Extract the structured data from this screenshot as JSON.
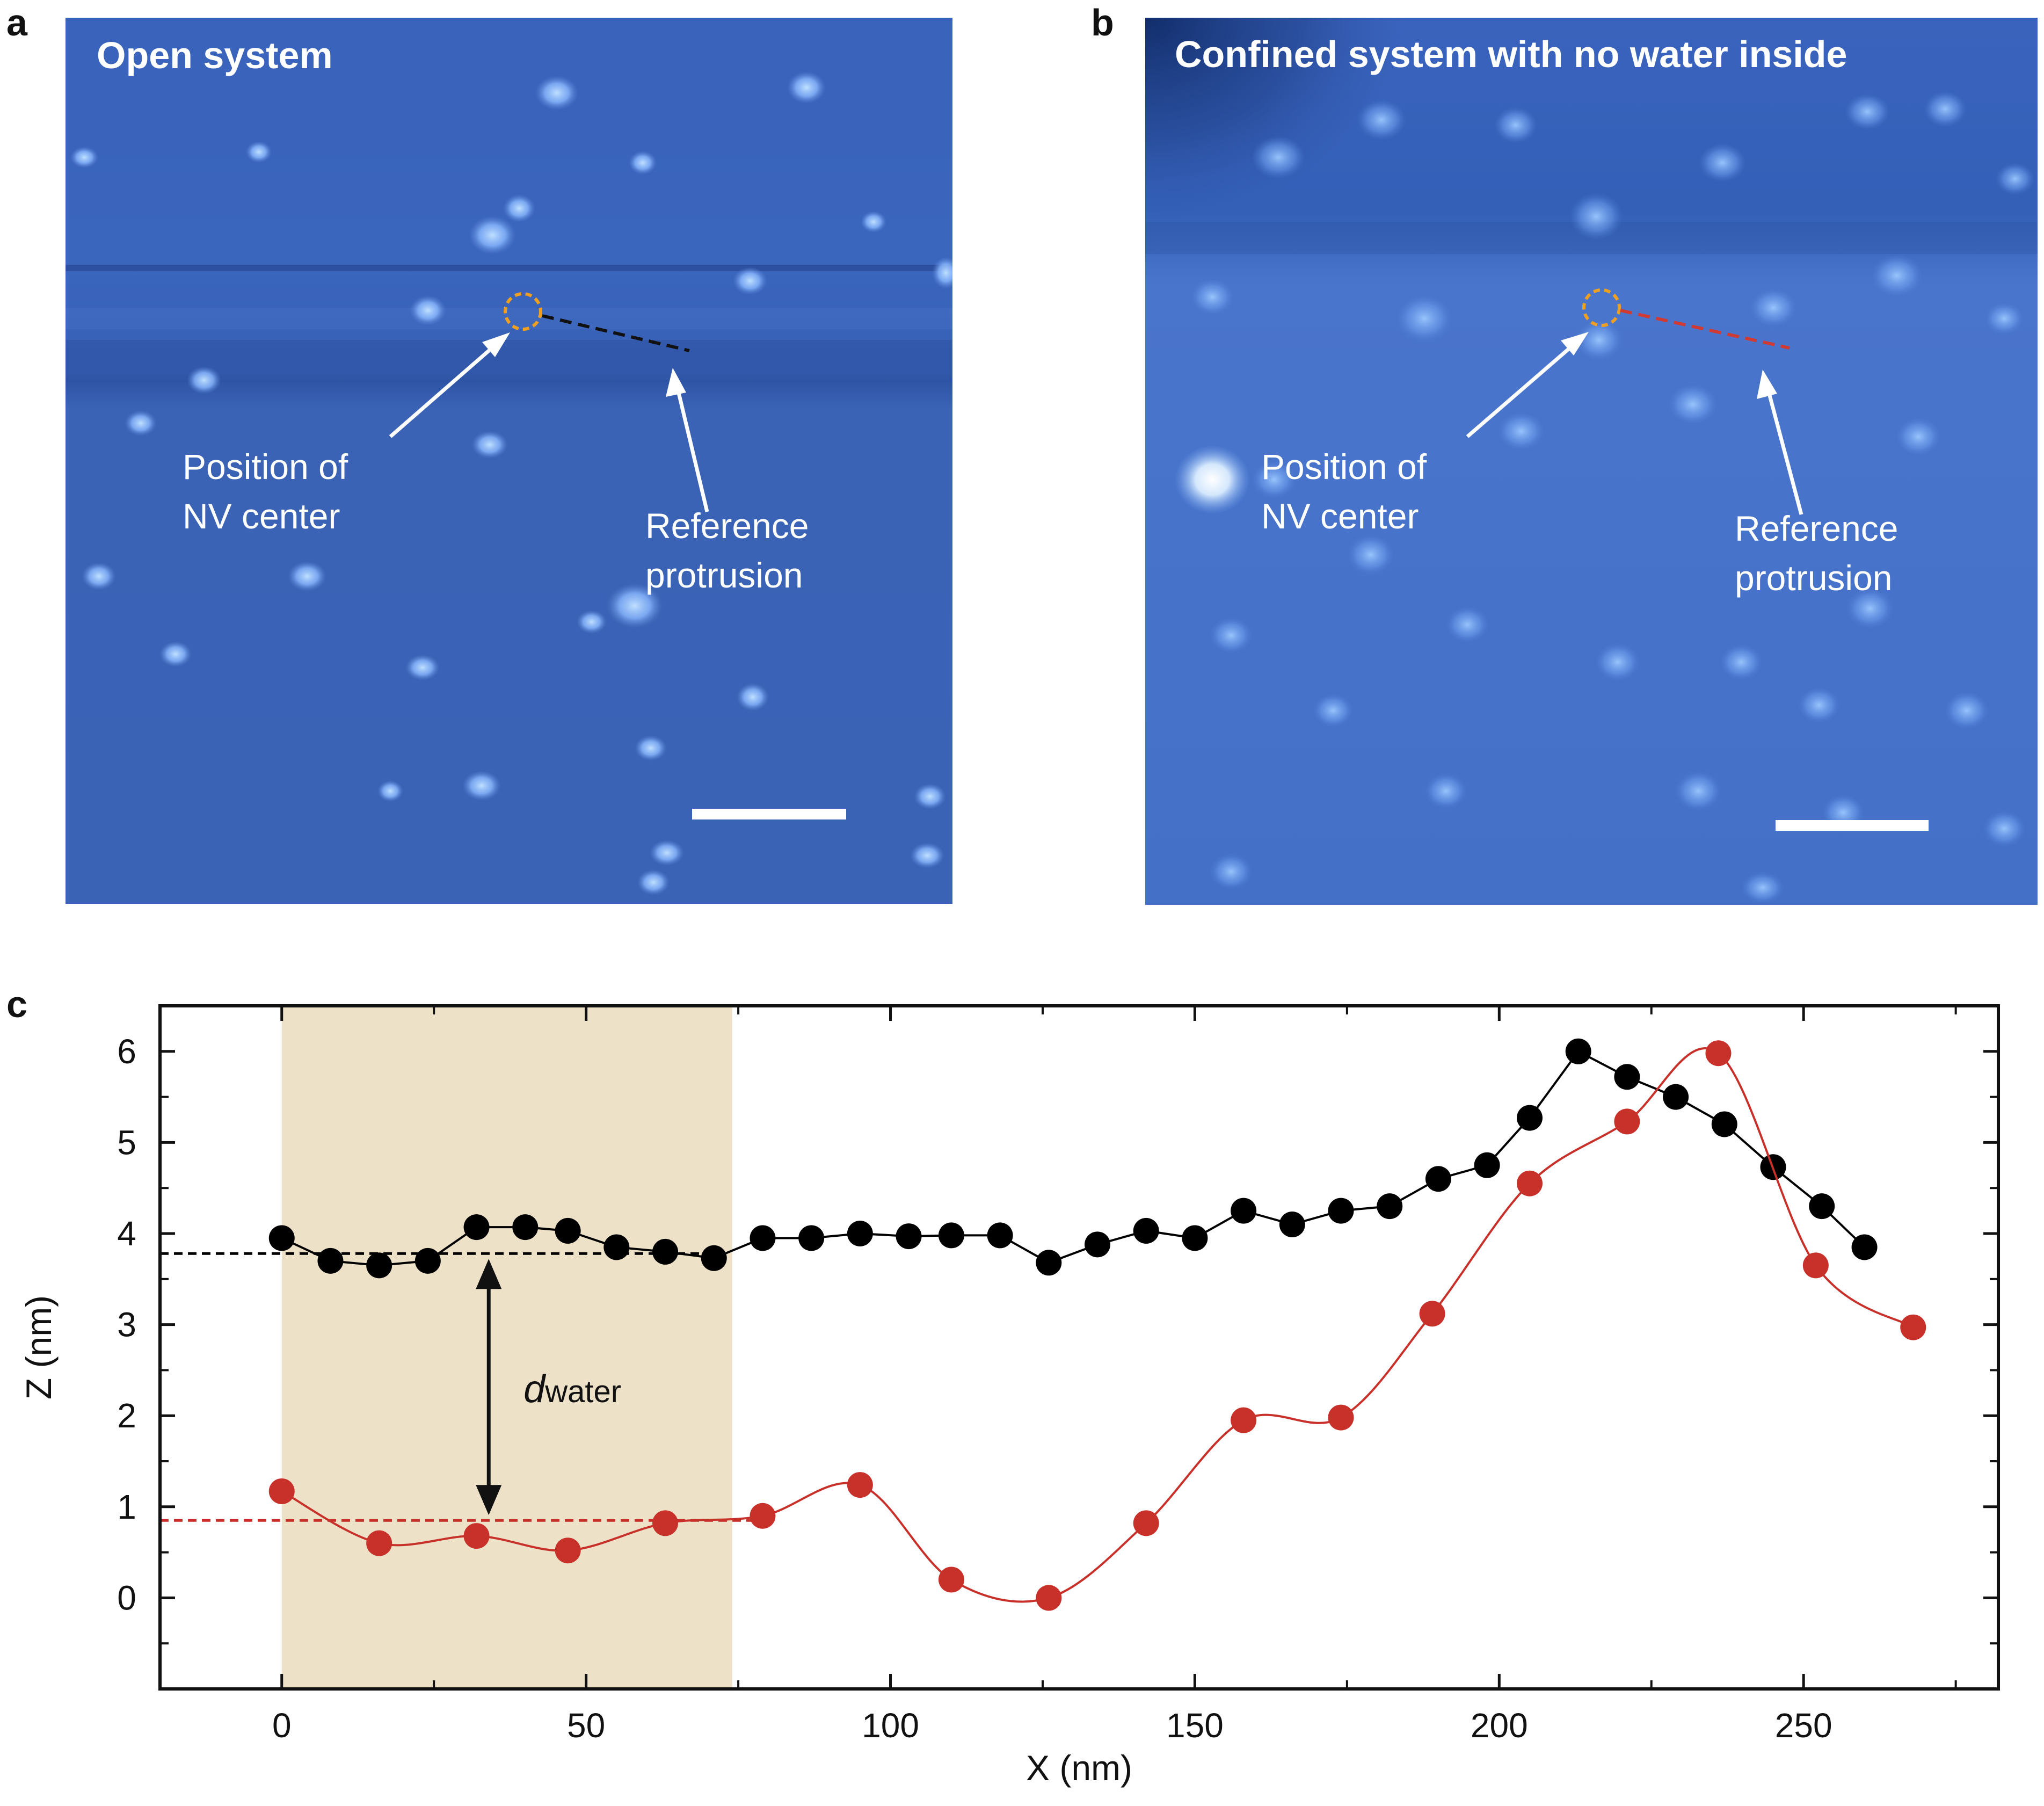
{
  "panels": {
    "a": {
      "letter": "a",
      "title": "Open system",
      "nv_label": [
        "Position of",
        "NV center"
      ],
      "ref_label": [
        "Reference",
        "protrusion"
      ],
      "profile_color": "#111111"
    },
    "b": {
      "letter": "b",
      "title": "Confined system with no water inside",
      "nv_label": [
        "Position of",
        "NV center"
      ],
      "ref_label": [
        "Reference",
        "protrusion"
      ],
      "profile_color": "#d03a32"
    },
    "c": {
      "letter": "c"
    }
  },
  "colors": {
    "afm_base": "#3a64b8",
    "afm_highlight": "#a8d0ff",
    "nv_circle": "#f0a020",
    "shaded_region": "#ede1c8",
    "black_series": "#000000",
    "red_series": "#c8302a"
  },
  "chart_data": {
    "type": "line",
    "xlabel": "X (nm)",
    "ylabel": "Z (nm)",
    "xlim": [
      -20,
      282
    ],
    "ylim": [
      -1,
      6.5
    ],
    "xticks": [
      "0",
      "50",
      "100",
      "150",
      "200",
      "250"
    ],
    "yticks": [
      "0",
      "1",
      "2",
      "3",
      "4",
      "5",
      "6"
    ],
    "shaded_x_range": [
      0,
      74
    ],
    "annotation": {
      "d": "d",
      "sub": "water",
      "x": 34,
      "y_from": 3.78,
      "y_to": 0.85
    },
    "series": [
      {
        "name": "open system",
        "color": "#000000",
        "reference_level": 3.78,
        "x": [
          0,
          8,
          16,
          24,
          32,
          40,
          47,
          55,
          63,
          71,
          79,
          87,
          95,
          103,
          110,
          118,
          126,
          134,
          142,
          150,
          158,
          166,
          174,
          182,
          190,
          198,
          205,
          213,
          221,
          229,
          237,
          245,
          253,
          260
        ],
        "y": [
          3.95,
          3.7,
          3.65,
          3.7,
          4.07,
          4.07,
          4.03,
          3.85,
          3.8,
          3.73,
          3.95,
          3.95,
          4.0,
          3.97,
          3.98,
          3.98,
          3.68,
          3.88,
          4.03,
          3.95,
          4.25,
          4.1,
          4.25,
          4.3,
          4.6,
          4.75,
          5.27,
          6.0,
          5.72,
          5.5,
          5.2,
          4.73,
          4.3,
          3.85
        ]
      },
      {
        "name": "confined system",
        "color": "#c8302a",
        "reference_level": 0.85,
        "x": [
          0,
          16,
          32,
          47,
          63,
          79,
          95,
          110,
          126,
          142,
          158,
          174,
          189,
          205,
          221,
          236,
          252,
          268
        ],
        "y": [
          1.17,
          0.6,
          0.68,
          0.52,
          0.82,
          0.9,
          1.24,
          0.2,
          0.0,
          0.82,
          1.95,
          1.98,
          3.12,
          4.55,
          5.23,
          5.98,
          3.65,
          2.97
        ]
      }
    ]
  }
}
